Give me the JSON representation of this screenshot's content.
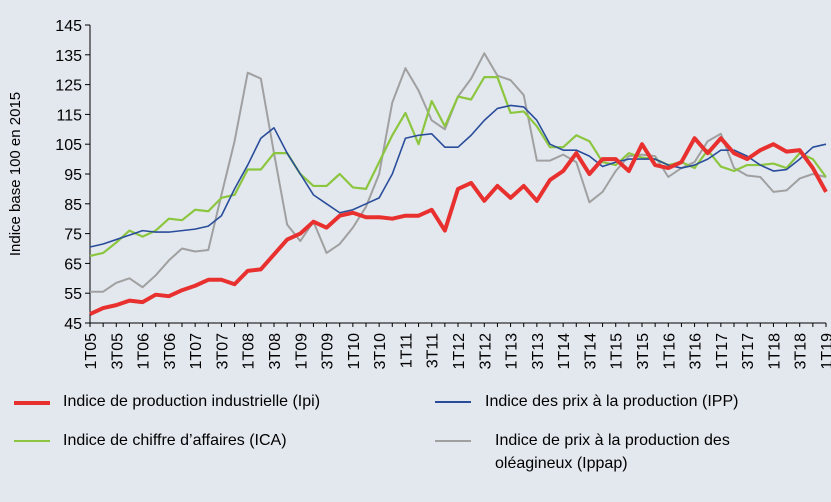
{
  "chart_data": {
    "type": "line",
    "y_label": "Indice base 100 en 2015",
    "categories": [
      "1T05",
      null,
      "3T05",
      null,
      "1T06",
      null,
      "3T06",
      null,
      "1T07",
      null,
      "3T07",
      null,
      "1T08",
      null,
      "3T08",
      null,
      "1T09",
      null,
      "3T09",
      null,
      "1T10",
      null,
      "3T10",
      null,
      "1T11",
      null,
      "3T11",
      null,
      "1T12",
      null,
      "3T12",
      null,
      "1T13",
      null,
      "3T13",
      null,
      "1T14",
      null,
      "3T14",
      null,
      "1T15",
      null,
      "3T15",
      null,
      "1T16",
      null,
      "3T16",
      null,
      "1T17",
      null,
      "3T17",
      null,
      "1T18",
      null,
      "3T18",
      null,
      "1T19"
    ],
    "series": [
      {
        "name": "Indice de production industrielle (Ipi)",
        "color": "#e8312f",
        "values": [
          48,
          50,
          51,
          52.5,
          52,
          54.5,
          54,
          56,
          57.5,
          59.5,
          59.5,
          58,
          62.5,
          63,
          68,
          73,
          75,
          79,
          77,
          81,
          82,
          80.5,
          80.5,
          80,
          81,
          81,
          83,
          76,
          90,
          92,
          86,
          91,
          87,
          91,
          86,
          93,
          96,
          102,
          95,
          100,
          100,
          96,
          105,
          98,
          97,
          99,
          107,
          102,
          107,
          102,
          100,
          103,
          105,
          102.5,
          103,
          97,
          89
        ]
      },
      {
        "name": "Indice des prix à la production (IPP)",
        "color": "#2a4d9b",
        "values": [
          70.5,
          71.5,
          73,
          74.5,
          76,
          75.5,
          75.5,
          76,
          76.5,
          77.5,
          81,
          90,
          98,
          107,
          110.5,
          102,
          95,
          88,
          85,
          82,
          83,
          85,
          87,
          95,
          107,
          108,
          108.5,
          104,
          104,
          108,
          113,
          117,
          118,
          117.5,
          113,
          105,
          103,
          103,
          101,
          97.5,
          99,
          100,
          100,
          100,
          98,
          97,
          98,
          100,
          103,
          103,
          101,
          98,
          96,
          96.5,
          100,
          104,
          105
        ]
      },
      {
        "name": "Indice de chiffre d’affaires (ICA)",
        "color": "#8cc63f",
        "values": [
          67.5,
          68.5,
          72,
          76,
          74,
          76,
          80,
          79.5,
          83,
          82.5,
          87,
          88,
          96.5,
          96.5,
          102,
          102,
          95,
          91,
          91,
          95,
          90.5,
          90,
          99,
          108,
          115.5,
          105,
          119.5,
          111,
          121,
          120,
          127.5,
          127.5,
          115.5,
          116,
          111,
          104,
          104,
          108,
          106,
          99,
          98,
          102,
          100.5,
          100,
          98,
          99,
          97,
          103,
          97.5,
          96,
          98,
          98,
          98.5,
          97,
          102,
          100,
          94
        ]
      },
      {
        "name": "Indice de prix à la production des oléagineux (Ippap)",
        "color": "#a0a0a0",
        "values": [
          55.5,
          55.5,
          58.5,
          60,
          57,
          61,
          66,
          70,
          69,
          69.5,
          88,
          106,
          129,
          127,
          102,
          78,
          72.5,
          79,
          68.5,
          71.5,
          77,
          84,
          95,
          119,
          130.5,
          123,
          113,
          110,
          121,
          127,
          135.5,
          128,
          126.5,
          121.5,
          99.5,
          99.5,
          101.5,
          99,
          85.5,
          89,
          96,
          101,
          101.5,
          101,
          94,
          97,
          99,
          106,
          108.5,
          97,
          94.5,
          94,
          89,
          89.5,
          93.5,
          95,
          94
        ]
      }
    ],
    "ylim": [
      45,
      145
    ],
    "yticks": [
      45,
      55,
      65,
      75,
      85,
      95,
      105,
      115,
      125,
      135,
      145
    ]
  }
}
